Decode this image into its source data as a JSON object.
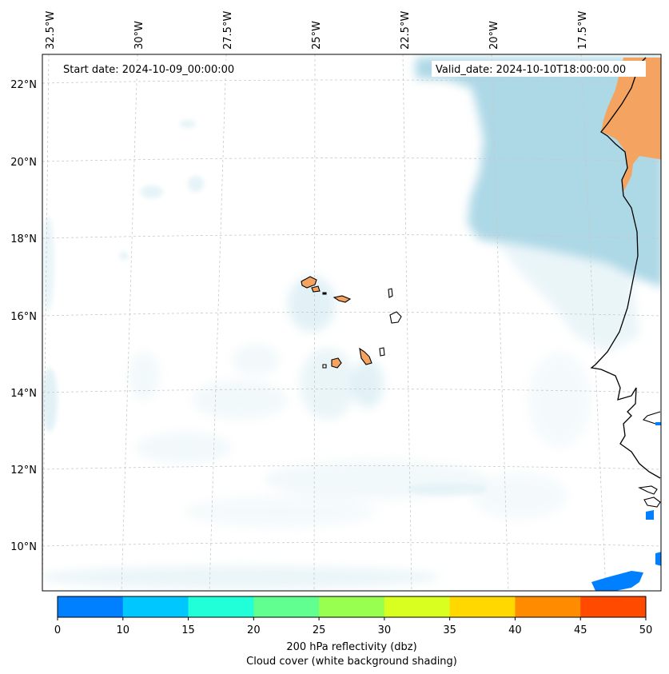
{
  "map": {
    "start_date_text": "Start date: 2024-10-09_00:00:00",
    "valid_date_text": "Valid_date: 2024-10-10T18:00:00.00",
    "lon_labels": [
      "32.5°W",
      "30°W",
      "27.5°W",
      "25°W",
      "22.5°W",
      "20°W",
      "17.5°W"
    ],
    "lat_labels": [
      "22°N",
      "20°N",
      "18°N",
      "16°N",
      "14°N",
      "12°N",
      "10°N"
    ],
    "colors": {
      "cloud": "#add8e6",
      "land": "#f4a460",
      "coast": "#000000",
      "grid": "#c8c8c8"
    }
  },
  "colorbar": {
    "ticks": [
      "0",
      "10",
      "15",
      "20",
      "25",
      "30",
      "35",
      "40",
      "45",
      "50"
    ],
    "colors": [
      "#0080ff",
      "#00c8ff",
      "#20ffd8",
      "#60ff90",
      "#98ff50",
      "#d8ff20",
      "#ffd800",
      "#ff8c00",
      "#ff4a00"
    ],
    "label_line1": "200 hPa reflectivity (dbz)",
    "label_line2": "Cloud cover (white background shading)"
  }
}
